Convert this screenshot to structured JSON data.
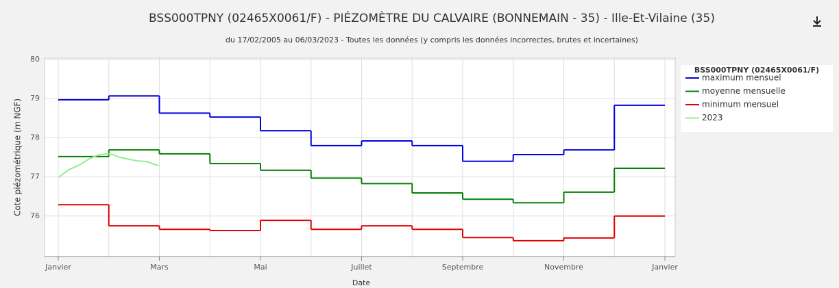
{
  "chart_data": {
    "type": "step-line",
    "title": "BSS000TPNY (02465X0061/F) - PIÉZOMÈTRE DU CALVAIRE (BONNEMAIN - 35) - Ille-Et-Vilaine (35)",
    "subtitle": "du 17/02/2005 au 06/03/2023 - Toutes les données (y compris les données incorrectes, brutes et incertaines)",
    "x_label": "Date",
    "y_label": "Cote piézométrique (m NGF)",
    "legend_title": "BSS000TPNY (02465X0061/F)",
    "xlim": [
      0,
      12
    ],
    "xticks": [
      {
        "value": 0,
        "label": "Janvier"
      },
      {
        "value": 2,
        "label": "Mars"
      },
      {
        "value": 4,
        "label": "Mai"
      },
      {
        "value": 6,
        "label": "Juillet"
      },
      {
        "value": 8,
        "label": "Septembre"
      },
      {
        "value": 10,
        "label": "Novembre"
      },
      {
        "value": 12,
        "label": "Janvier"
      }
    ],
    "minor_xticks": [
      1,
      3,
      5,
      7,
      9,
      11
    ],
    "ylim": [
      75,
      80
    ],
    "yticks": [
      76,
      77,
      78,
      79,
      80
    ],
    "grid": true,
    "legend": "right",
    "series": [
      {
        "name": "maximum mensuel",
        "color": "#0000e0",
        "x": [
          0,
          1,
          2,
          3,
          4,
          5,
          6,
          7,
          8,
          9,
          10,
          11
        ],
        "values": [
          78.97,
          79.07,
          78.63,
          78.53,
          78.18,
          77.8,
          77.92,
          77.8,
          77.4,
          77.57,
          77.69,
          78.83
        ]
      },
      {
        "name": "moyenne mensuelle",
        "color": "#008000",
        "x": [
          0,
          1,
          2,
          3,
          4,
          5,
          6,
          7,
          8,
          9,
          10,
          11
        ],
        "values": [
          77.52,
          77.69,
          77.59,
          77.34,
          77.17,
          76.97,
          76.83,
          76.59,
          76.43,
          76.34,
          76.61,
          77.22
        ]
      },
      {
        "name": "minimum mensuel",
        "color": "#e00000",
        "x": [
          0,
          1,
          2,
          3,
          4,
          5,
          6,
          7,
          8,
          9,
          10,
          11
        ],
        "values": [
          76.29,
          75.75,
          75.66,
          75.63,
          75.89,
          75.66,
          75.75,
          75.66,
          75.45,
          75.37,
          75.44,
          76.0
        ]
      },
      {
        "name": "2023",
        "color": "#90ee90",
        "step": false,
        "x": [
          0.01,
          0.2,
          0.41,
          0.61,
          0.77,
          0.95,
          1.08,
          1.22,
          1.36,
          1.56,
          1.76,
          1.9,
          1.99
        ],
        "values": [
          76.99,
          77.18,
          77.3,
          77.46,
          77.55,
          77.59,
          77.57,
          77.5,
          77.46,
          77.41,
          77.39,
          77.32,
          77.29
        ]
      }
    ]
  }
}
